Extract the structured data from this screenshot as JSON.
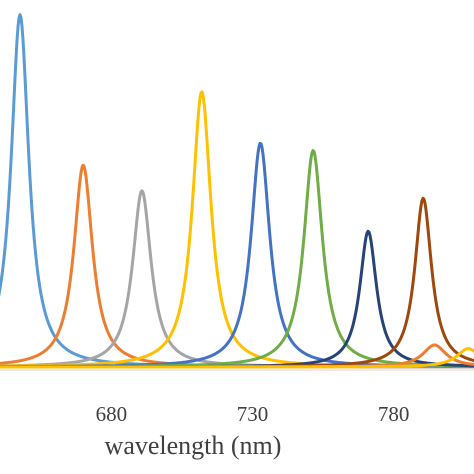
{
  "chart_data": {
    "type": "line",
    "xlabel": "wavelength (nm)",
    "ylabel": "",
    "title": "",
    "xlim": [
      640.5,
      808.5
    ],
    "ylim": [
      0,
      1.0
    ],
    "x_ticks": [
      680,
      730,
      780
    ],
    "grid": false,
    "legend": "none",
    "series": [
      {
        "color": "#5B9BD5",
        "peak": 647.6,
        "height": 0.96,
        "width": 3.8
      },
      {
        "color": "#ED7D31",
        "peak": 670.0,
        "height": 0.55,
        "width": 4.0
      },
      {
        "color": "#A5A5A5",
        "peak": 690.8,
        "height": 0.48,
        "width": 4.0
      },
      {
        "color": "#FFC000",
        "peak": 712.0,
        "height": 0.75,
        "width": 4.0
      },
      {
        "color": "#4472C4",
        "peak": 732.8,
        "height": 0.61,
        "width": 4.0
      },
      {
        "color": "#70AD47",
        "peak": 751.5,
        "height": 0.59,
        "width": 4.0
      },
      {
        "color": "#264478",
        "peak": 771.0,
        "height": 0.37,
        "width": 3.6
      },
      {
        "color": "#9E480E",
        "peak": 790.5,
        "height": 0.46,
        "width": 3.6
      },
      {
        "color": "#ED7D31",
        "peak": 794.5,
        "height": 0.06,
        "width": 5.0
      },
      {
        "color": "#FFC000",
        "peak": 806.5,
        "height": 0.05,
        "width": 5.0
      }
    ]
  }
}
